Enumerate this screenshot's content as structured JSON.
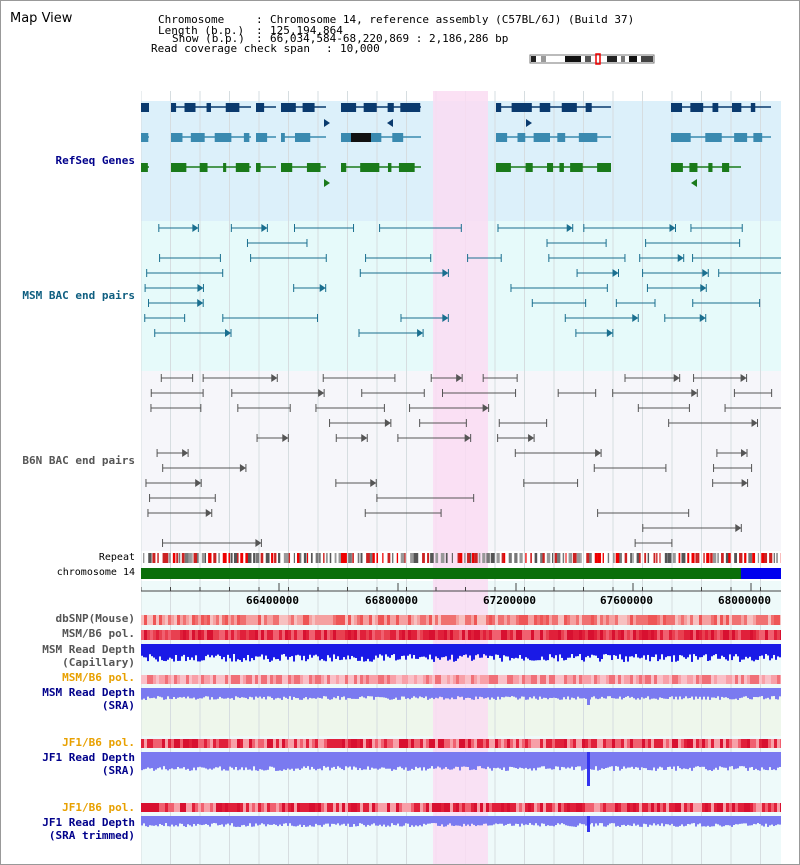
{
  "view_title": "Map View",
  "header": {
    "chromosome_key": "Chromosome",
    "chromosome_value": "Chromosome 14, reference assembly (C57BL/6J) (Build 37)",
    "length_key": "Length (b.p.)",
    "length_value": "125,194,864",
    "show_key": "Show (b.p.)",
    "show_value": "66,034,584-68,220,869 : 2,186,286 bp",
    "span_key": "Read coverage check span",
    "span_value": "10,000"
  },
  "tracks": {
    "refseq": "RefSeq Genes",
    "msm_bac": "MSM BAC end pairs",
    "b6n_bac": "B6N BAC end pairs",
    "repeat": "Repeat",
    "chromosome": "chromosome 14",
    "dbsnp": "dbSNP(Mouse)",
    "msm_b6_pol_1": "MSM/B6 pol.",
    "msm_read_depth_cap_1": "MSM Read Depth",
    "msm_read_depth_cap_2": "(Capillary)",
    "msm_b6_pol_2": "MSM/B6 pol.",
    "msm_read_depth_sra_1": "MSM Read Depth",
    "msm_read_depth_sra_2": "(SRA)",
    "jf1_b6_pol_1": "JF1/B6 pol.",
    "jf1_read_depth_sra_1": "JF1 Read Depth",
    "jf1_read_depth_sra_2": "(SRA)",
    "jf1_b6_pol_2": "JF1/B6 pol.",
    "jf1_read_depth_trim_1": "JF1 Read Depth",
    "jf1_read_depth_trim_2": "(SRA trimmed)"
  },
  "axis": {
    "ticks": [
      "66400000",
      "66800000",
      "67200000",
      "67600000",
      "68000000"
    ]
  },
  "colors": {
    "highlight": "#fadcf2",
    "refseq_bg": "#dcf0fa",
    "msm_bg": "#e6fafa",
    "b6n_bg": "#f6f6fa",
    "gene_dark": "#0a3a6e",
    "gene_mid": "#3a8ab0",
    "gene_green": "#1a7a1a",
    "msm_line": "#1a6f8f",
    "b6n_line": "#555555",
    "chrom_green": "#0a6e0a",
    "chrom_blue": "#0000ee",
    "depth_dark": "#1a1ae6",
    "depth_light": "#7a7af0",
    "pol_red": "#e0203a"
  }
}
